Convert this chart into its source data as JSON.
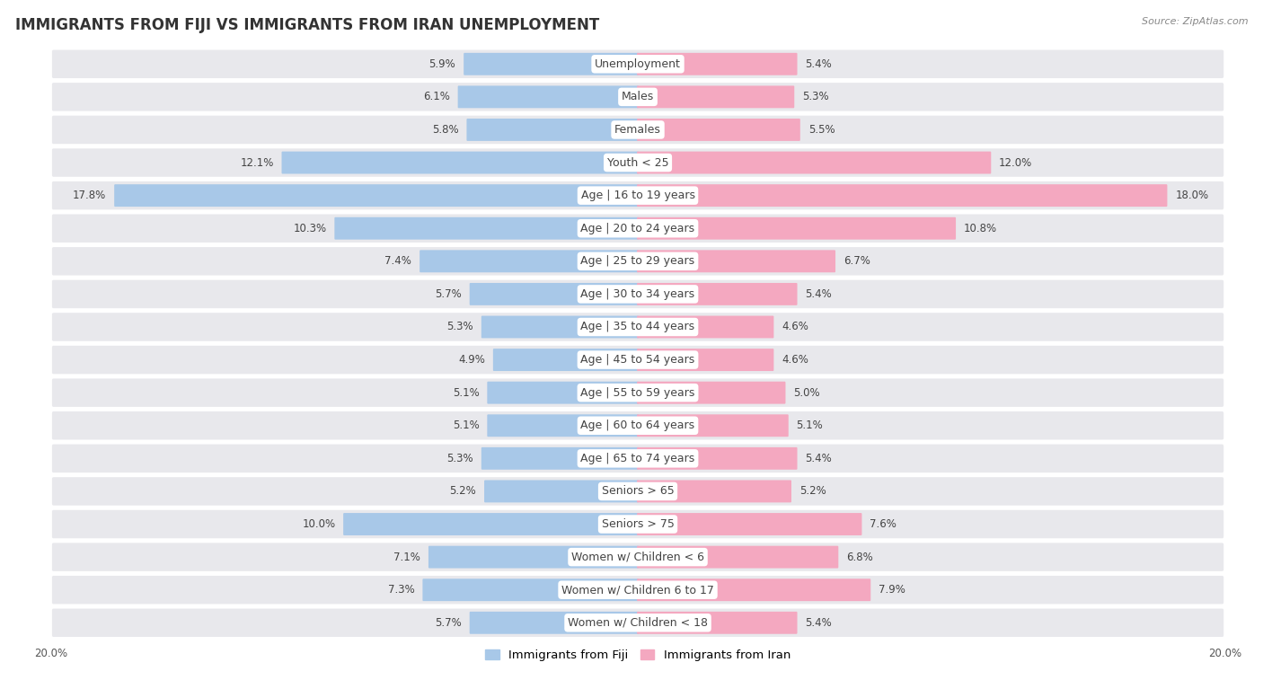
{
  "title": "IMMIGRANTS FROM FIJI VS IMMIGRANTS FROM IRAN UNEMPLOYMENT",
  "source": "Source: ZipAtlas.com",
  "categories": [
    "Unemployment",
    "Males",
    "Females",
    "Youth < 25",
    "Age | 16 to 19 years",
    "Age | 20 to 24 years",
    "Age | 25 to 29 years",
    "Age | 30 to 34 years",
    "Age | 35 to 44 years",
    "Age | 45 to 54 years",
    "Age | 55 to 59 years",
    "Age | 60 to 64 years",
    "Age | 65 to 74 years",
    "Seniors > 65",
    "Seniors > 75",
    "Women w/ Children < 6",
    "Women w/ Children 6 to 17",
    "Women w/ Children < 18"
  ],
  "fiji_values": [
    5.9,
    6.1,
    5.8,
    12.1,
    17.8,
    10.3,
    7.4,
    5.7,
    5.3,
    4.9,
    5.1,
    5.1,
    5.3,
    5.2,
    10.0,
    7.1,
    7.3,
    5.7
  ],
  "iran_values": [
    5.4,
    5.3,
    5.5,
    12.0,
    18.0,
    10.8,
    6.7,
    5.4,
    4.6,
    4.6,
    5.0,
    5.1,
    5.4,
    5.2,
    7.6,
    6.8,
    7.9,
    5.4
  ],
  "fiji_color": "#A8C8E8",
  "iran_color": "#F4A8C0",
  "background_color": "#ffffff",
  "row_bg_color": "#E8E8EC",
  "xlim": 20.0,
  "legend_fiji": "Immigrants from Fiji",
  "legend_iran": "Immigrants from Iran",
  "title_fontsize": 12,
  "label_fontsize": 9,
  "value_fontsize": 8.5
}
